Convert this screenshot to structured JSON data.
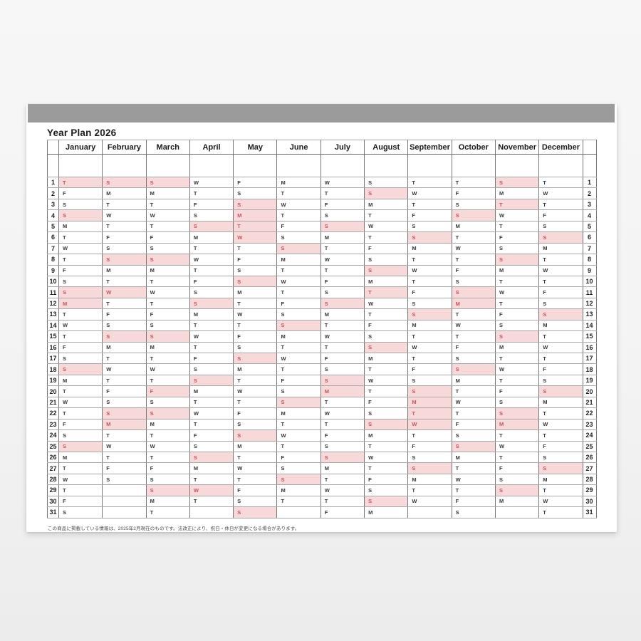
{
  "page": {
    "title": "Year Plan 2026",
    "footnote": "この商品に掲載している情報は、2025年2月現在のものです。法改正により、祝日・休日が変更になる場合があります。"
  },
  "calendar": {
    "year": "2026",
    "weekday_letters": [
      "M",
      "T",
      "W",
      "T",
      "F",
      "S",
      "S"
    ],
    "day_numbers_range": [
      1,
      31
    ],
    "highlight_color": "#f8d9d9",
    "highlight_text_color": "#c5545d",
    "months": [
      {
        "name": "January",
        "days": 31,
        "first_dow": 3,
        "highlighted": [
          1,
          4,
          11,
          12,
          18,
          25
        ]
      },
      {
        "name": "February",
        "days": 28,
        "first_dow": 6,
        "highlighted": [
          1,
          8,
          11,
          15,
          22,
          23
        ]
      },
      {
        "name": "March",
        "days": 31,
        "first_dow": 6,
        "highlighted": [
          1,
          8,
          15,
          20,
          22,
          29
        ]
      },
      {
        "name": "April",
        "days": 30,
        "first_dow": 2,
        "highlighted": [
          5,
          12,
          19,
          26,
          29
        ]
      },
      {
        "name": "May",
        "days": 31,
        "first_dow": 4,
        "highlighted": [
          3,
          4,
          5,
          6,
          10,
          17,
          24,
          31
        ]
      },
      {
        "name": "June",
        "days": 30,
        "first_dow": 0,
        "highlighted": [
          7,
          14,
          21,
          28
        ]
      },
      {
        "name": "July",
        "days": 31,
        "first_dow": 2,
        "highlighted": [
          5,
          12,
          19,
          20,
          26
        ]
      },
      {
        "name": "August",
        "days": 31,
        "first_dow": 5,
        "highlighted": [
          2,
          9,
          11,
          16,
          23,
          30
        ]
      },
      {
        "name": "September",
        "days": 30,
        "first_dow": 1,
        "highlighted": [
          6,
          13,
          20,
          21,
          22,
          23,
          27
        ]
      },
      {
        "name": "October",
        "days": 31,
        "first_dow": 3,
        "highlighted": [
          4,
          11,
          12,
          18,
          25
        ]
      },
      {
        "name": "November",
        "days": 30,
        "first_dow": 6,
        "highlighted": [
          1,
          3,
          8,
          15,
          22,
          23,
          29
        ]
      },
      {
        "name": "December",
        "days": 31,
        "first_dow": 1,
        "highlighted": [
          6,
          13,
          20,
          27
        ]
      }
    ]
  }
}
